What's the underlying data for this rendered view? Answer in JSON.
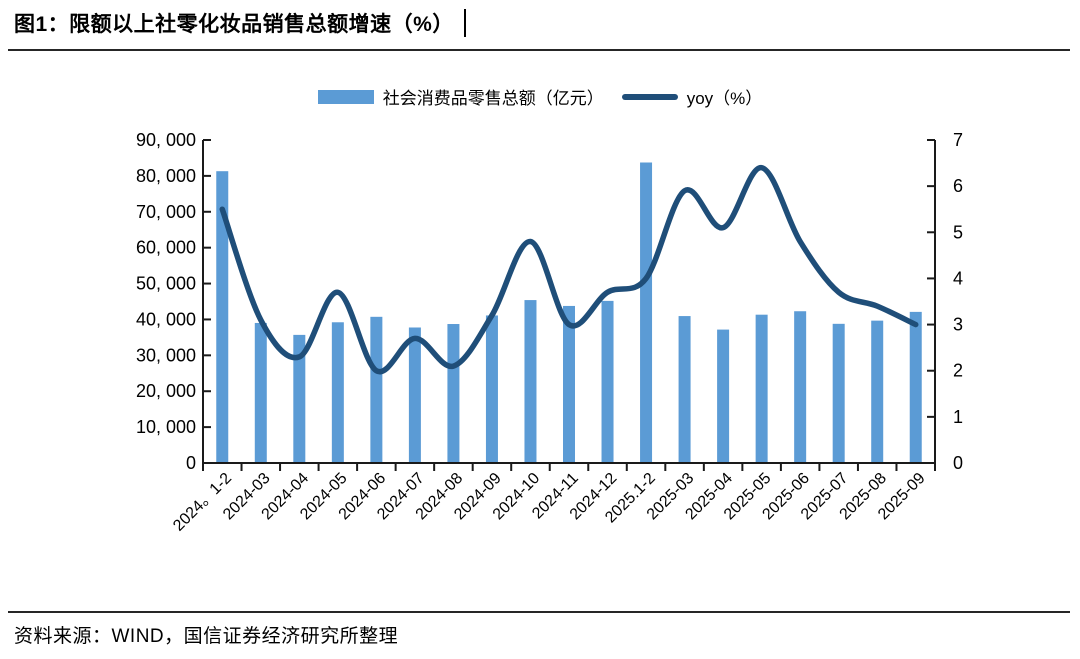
{
  "header": {
    "title": "图1：限额以上社零化妆品销售总额增速（%）"
  },
  "legend": [
    {
      "label": "社会消费品零售总额（亿元）",
      "swatch": "bar-swatch",
      "color": "#5B9BD5"
    },
    {
      "label": "yoy（%）",
      "swatch": "line-swatch",
      "color": "#1F4E79"
    }
  ],
  "footer": {
    "source": "资料来源：WIND，国信证券经济研究所整理"
  },
  "colors": {
    "bar": "#5B9BD5",
    "line": "#1F4E79",
    "axis": "#1a1a1a",
    "text": "#000000"
  },
  "chart_data": {
    "type": "bar+line",
    "title": "限额以上社零化妆品销售总额增速（%）",
    "legend_position": "top",
    "grid": false,
    "line_smooth": true,
    "categories": [
      "2024。1-2",
      "2024-03",
      "2024-04",
      "2024-05",
      "2024-06",
      "2024-07",
      "2024-08",
      "2024-09",
      "2024-10",
      "2024-11",
      "2024-12",
      "2025.1-2",
      "2025-03",
      "2025-04",
      "2025-05",
      "2025-06",
      "2025-07",
      "2025-08",
      "2025-09"
    ],
    "series": [
      {
        "name": "社会消费品零售总额（亿元）",
        "type": "bar",
        "axis": "left",
        "color": "#5B9BD5",
        "values": [
          81307,
          39020,
          35699,
          39211,
          40732,
          37757,
          38726,
          41112,
          45396,
          43763,
          45172,
          83731,
          40940,
          37174,
          41326,
          42287,
          38780,
          39668,
          42107
        ]
      },
      {
        "name": "yoy（%）",
        "type": "line",
        "axis": "right",
        "color": "#1F4E79",
        "values": [
          5.5,
          3.1,
          2.3,
          3.7,
          2.0,
          2.7,
          2.1,
          3.2,
          4.8,
          3.0,
          3.7,
          4.0,
          5.9,
          5.1,
          6.4,
          4.8,
          3.7,
          3.4,
          3.0
        ]
      }
    ],
    "left_axis": {
      "min": 0,
      "max": 90000,
      "step": 10000,
      "values": [
        0,
        10000,
        20000,
        30000,
        40000,
        50000,
        60000,
        70000,
        80000,
        90000
      ],
      "labels": [
        "0",
        "10, 000",
        "20, 000",
        "30, 000",
        "40, 000",
        "50, 000",
        "60, 000",
        "70, 000",
        "80, 000",
        "90, 000"
      ]
    },
    "right_axis": {
      "min": 0,
      "max": 7,
      "step": 1,
      "values": [
        0,
        1,
        2,
        3,
        4,
        5,
        6,
        7
      ],
      "labels": [
        "0",
        "1",
        "2",
        "3",
        "4",
        "5",
        "6",
        "7"
      ]
    }
  }
}
